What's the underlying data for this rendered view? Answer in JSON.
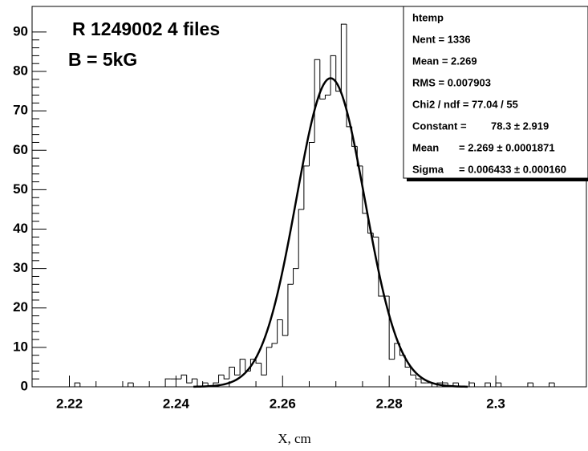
{
  "chart_data": {
    "type": "histogram",
    "annotations": [
      "R 1249002 4 files",
      "B = 5kG"
    ],
    "x_label": "X, cm",
    "bins": [
      2.213,
      2.214,
      2.215,
      2.216,
      2.217,
      2.218,
      2.219,
      2.22,
      2.221,
      2.222,
      2.223,
      2.224,
      2.225,
      2.226,
      2.227,
      2.228,
      2.229,
      2.23,
      2.231,
      2.232,
      2.233,
      2.234,
      2.235,
      2.236,
      2.237,
      2.238,
      2.239,
      2.24,
      2.241,
      2.242,
      2.243,
      2.244,
      2.245,
      2.246,
      2.247,
      2.248,
      2.249,
      2.25,
      2.251,
      2.252,
      2.253,
      2.254,
      2.255,
      2.256,
      2.257,
      2.258,
      2.259,
      2.26,
      2.261,
      2.262,
      2.263,
      2.264,
      2.265,
      2.266,
      2.267,
      2.268,
      2.269,
      2.27,
      2.271,
      2.272,
      2.273,
      2.274,
      2.275,
      2.276,
      2.277,
      2.278,
      2.279,
      2.28,
      2.281,
      2.282,
      2.283,
      2.284,
      2.285,
      2.286,
      2.287,
      2.288,
      2.289,
      2.29,
      2.291,
      2.292,
      2.293,
      2.294,
      2.295,
      2.296,
      2.297,
      2.298,
      2.299,
      2.3,
      2.301,
      2.302,
      2.303,
      2.304,
      2.305,
      2.306,
      2.307,
      2.308,
      2.309,
      2.31,
      2.311,
      2.312,
      2.313,
      2.314,
      2.315,
      2.316,
      2.317
    ],
    "values": [
      0,
      0,
      0,
      0,
      0,
      0,
      0,
      0,
      1,
      0,
      0,
      0,
      0,
      0,
      0,
      0,
      0,
      0,
      1,
      0,
      0,
      0,
      0,
      0,
      0,
      2,
      2,
      2,
      3,
      1,
      2,
      0,
      1,
      0,
      1,
      3,
      2,
      5,
      3,
      7,
      4,
      7,
      6,
      3,
      10,
      11,
      17,
      13,
      26,
      30,
      45,
      56,
      62,
      83,
      73,
      74,
      84,
      75,
      92,
      66,
      61,
      56,
      44,
      39,
      38,
      23,
      23,
      7,
      11,
      8,
      5,
      3,
      2,
      1,
      1,
      0,
      1,
      1,
      0,
      1,
      0,
      0,
      1,
      0,
      0,
      1,
      0,
      1,
      0,
      0,
      0,
      0,
      0,
      1,
      0,
      0,
      0,
      1,
      0,
      0,
      0,
      0,
      0,
      0
    ],
    "color": "#000000",
    "xlim": [
      2.213,
      2.317
    ],
    "xticks": [
      2.22,
      2.24,
      2.26,
      2.28,
      2.3
    ],
    "ylim": [
      0,
      96.5
    ],
    "yticks": [
      0,
      10,
      20,
      30,
      40,
      50,
      60,
      70,
      80,
      90
    ],
    "fit": {
      "constant": 78.3,
      "mean": 2.269,
      "sigma": 0.006433
    },
    "stats": {
      "title": "htemp",
      "rows": [
        {
          "label": "Nent = 1336",
          "value": ""
        },
        {
          "label": "Mean  =  2.269",
          "value": ""
        },
        {
          "label": "RMS   = 0.007903",
          "value": ""
        },
        {
          "label": "Chi2 / ndf = 77.04 / 55",
          "value": ""
        },
        {
          "label": "Constant =",
          "value": "78.3 ± 2.919"
        },
        {
          "label": "Mean",
          "value": "= 2.269 ± 0.0001871"
        },
        {
          "label": "Sigma",
          "value": "= 0.006433 ± 0.000160"
        }
      ]
    }
  }
}
